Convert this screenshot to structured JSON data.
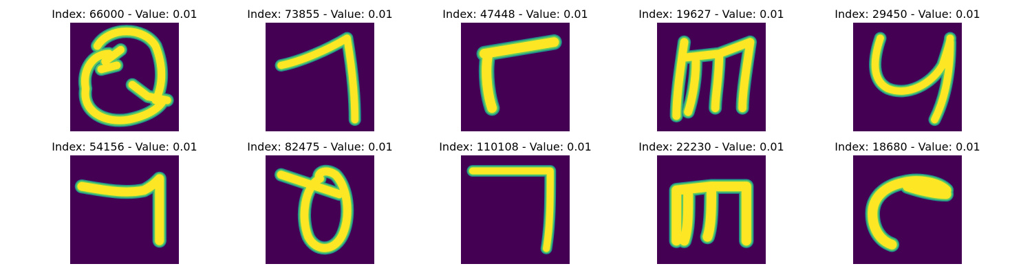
{
  "colors": {
    "background": "#440154",
    "stroke_core": "#fde725",
    "stroke_edge_1": "#5ec962",
    "stroke_edge_2": "#21918c"
  },
  "panels": [
    {
      "title": "Index: 66000 - Value: 0.01",
      "glyph": "loop-q"
    },
    {
      "title": "Index: 73855 - Value: 0.01",
      "glyph": "seven-stroke"
    },
    {
      "title": "Index: 47448 - Value: 0.01",
      "glyph": "gamma-corner"
    },
    {
      "title": "Index: 19627 - Value: 0.01",
      "glyph": "m-shape"
    },
    {
      "title": "Index: 29450 - Value: 0.01",
      "glyph": "u-hook"
    },
    {
      "title": "Index: 54156 - Value: 0.01",
      "glyph": "seven-bar"
    },
    {
      "title": "Index: 82475 - Value: 0.01",
      "glyph": "theta-loop"
    },
    {
      "title": "Index: 110108 - Value: 0.01",
      "glyph": "right-angle"
    },
    {
      "title": "Index: 22230 - Value: 0.01",
      "glyph": "m-shape-2"
    },
    {
      "title": "Index: 18680 - Value: 0.01",
      "glyph": "c-hook"
    }
  ]
}
